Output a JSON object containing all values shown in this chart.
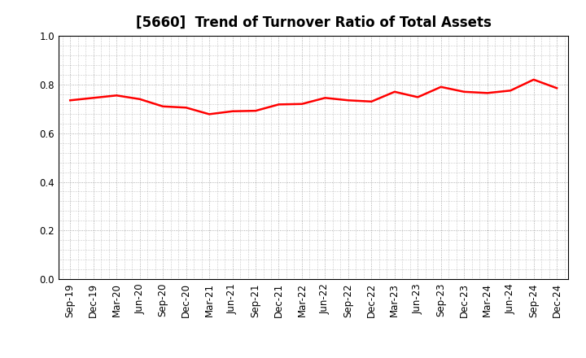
{
  "title": "[5660]  Trend of Turnover Ratio of Total Assets",
  "line_color": "#FF0000",
  "line_width": 1.8,
  "background_color": "#FFFFFF",
  "grid_color": "#999999",
  "ylim": [
    0.0,
    1.0
  ],
  "yticks": [
    0.0,
    0.2,
    0.4,
    0.6,
    0.8,
    1.0
  ],
  "xlabels": [
    "Sep-19",
    "Dec-19",
    "Mar-20",
    "Jun-20",
    "Sep-20",
    "Dec-20",
    "Mar-21",
    "Jun-21",
    "Sep-21",
    "Dec-21",
    "Mar-22",
    "Jun-22",
    "Sep-22",
    "Dec-22",
    "Mar-23",
    "Jun-23",
    "Sep-23",
    "Dec-23",
    "Mar-24",
    "Jun-24",
    "Sep-24",
    "Dec-24"
  ],
  "values": [
    0.735,
    0.745,
    0.755,
    0.74,
    0.71,
    0.705,
    0.678,
    0.69,
    0.692,
    0.718,
    0.72,
    0.745,
    0.735,
    0.73,
    0.77,
    0.748,
    0.79,
    0.77,
    0.765,
    0.775,
    0.82,
    0.785
  ],
  "title_fontsize": 12,
  "tick_fontsize": 8.5
}
